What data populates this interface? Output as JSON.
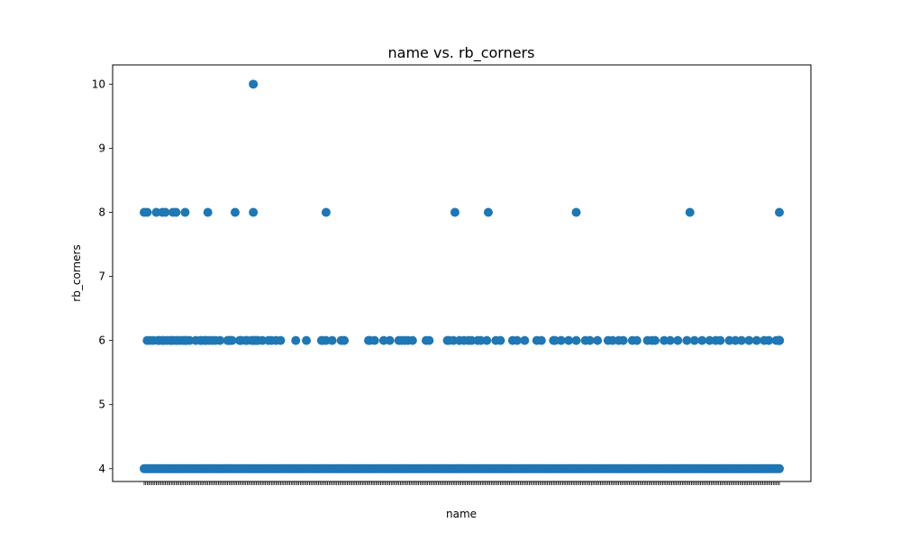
{
  "chart_data": {
    "type": "scatter",
    "title": "name vs. rb_corners",
    "xlabel": "name",
    "ylabel": "rb_corners",
    "ylim": [
      3.8,
      10.3
    ],
    "yticks": [
      4,
      5,
      6,
      7,
      8,
      9,
      10
    ],
    "grid": false,
    "legend": "none",
    "marker_color": "#1f77b4",
    "x_tick_labels_note": "",
    "n_points": 420,
    "points_by_value": {
      "10": [
        72
      ],
      "8": [
        0,
        2,
        8,
        12,
        14,
        19,
        21,
        27,
        42,
        60,
        72,
        120,
        205,
        227,
        285,
        360,
        430
      ],
      "6": [
        2,
        4,
        6,
        9,
        10,
        12,
        13,
        15,
        17,
        18,
        19,
        21,
        22,
        24,
        26,
        27,
        28,
        30,
        34,
        37,
        38,
        40,
        41,
        43,
        45,
        47,
        50,
        55,
        56,
        57,
        58,
        63,
        64,
        67,
        68,
        71,
        72,
        73,
        74,
        75,
        78,
        82,
        84,
        87,
        90,
        100,
        107,
        117,
        118,
        120,
        124,
        130,
        132,
        148,
        149,
        152,
        158,
        162,
        168,
        170,
        172,
        174,
        177,
        186,
        188,
        200,
        201,
        204,
        208,
        211,
        214,
        216,
        220,
        222,
        226,
        232,
        235,
        243,
        246,
        251,
        259,
        262,
        270,
        271,
        275,
        280,
        285,
        291,
        294,
        299,
        306,
        309,
        313,
        316,
        322,
        325,
        332,
        335,
        337,
        343,
        347,
        352,
        358,
        363,
        368,
        373,
        377,
        380,
        386,
        390,
        394,
        399,
        404,
        409,
        412,
        417,
        420,
        425,
        428,
        432,
        436,
        441,
        444,
        449,
        454
      ]
    },
    "base_value": 4
  }
}
